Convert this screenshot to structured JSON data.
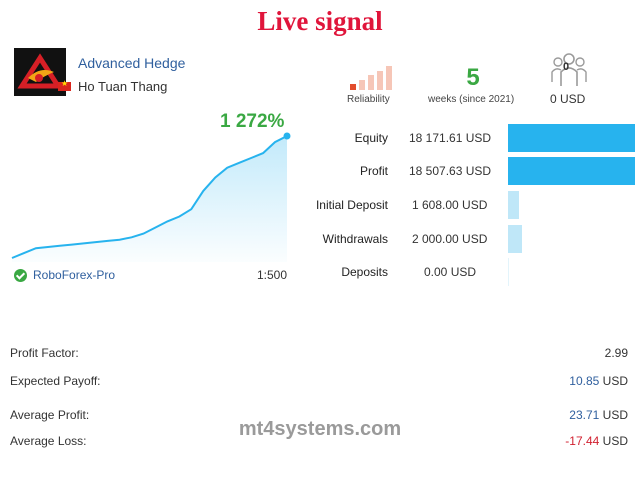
{
  "page_title": "Live signal",
  "signal": {
    "name": "Advanced Hedge",
    "author": "Ho Tuan Thang",
    "broker": "RoboForex-Pro",
    "leverage": "1:500",
    "growth": "1 272%",
    "growth_series": [
      0,
      4,
      8,
      9,
      10,
      11,
      12,
      13,
      14,
      15,
      17,
      20,
      25,
      30,
      34,
      40,
      55,
      66,
      74,
      78,
      82,
      86,
      95,
      100
    ]
  },
  "header_stats": {
    "reliability_label": "Reliability",
    "reliability_level": 1,
    "reliability_max": 5,
    "weeks_value": "5",
    "weeks_label": "weeks (since 2021)",
    "subscribers_count": "0",
    "subscribers_value": "0 USD"
  },
  "account": [
    {
      "label": "Equity",
      "value": "18 171.61 USD",
      "bar_fraction": 1.0
    },
    {
      "label": "Profit",
      "value": "18 507.63 USD",
      "bar_fraction": 1.0
    },
    {
      "label": "Initial Deposit",
      "value": "1 608.00 USD",
      "bar_fraction": 0.087
    },
    {
      "label": "Withdrawals",
      "value": "2 000.00 USD",
      "bar_fraction": 0.108
    },
    {
      "label": "Deposits",
      "value": "0.00 USD",
      "bar_fraction": 0.0
    }
  ],
  "metrics": {
    "profit_factor_label": "Profit Factor:",
    "profit_factor_value": "2.99",
    "expected_payoff_label": "Expected Payoff:",
    "expected_payoff_value": "10.85",
    "average_profit_label": "Average Profit:",
    "average_profit_value": "23.71",
    "average_loss_label": "Average Loss:",
    "average_loss_value": "-17.44",
    "currency": "USD"
  },
  "watermark": "mt4systems.com",
  "colors": {
    "title": "#e0153b",
    "green": "#3aa843",
    "link_blue": "#2f5f9e",
    "bar_blue": "#27b3ee",
    "loss_red": "#d11f2f",
    "reliability_active": "#e24c2c",
    "reliability_inactive": "#f6c6b7"
  }
}
